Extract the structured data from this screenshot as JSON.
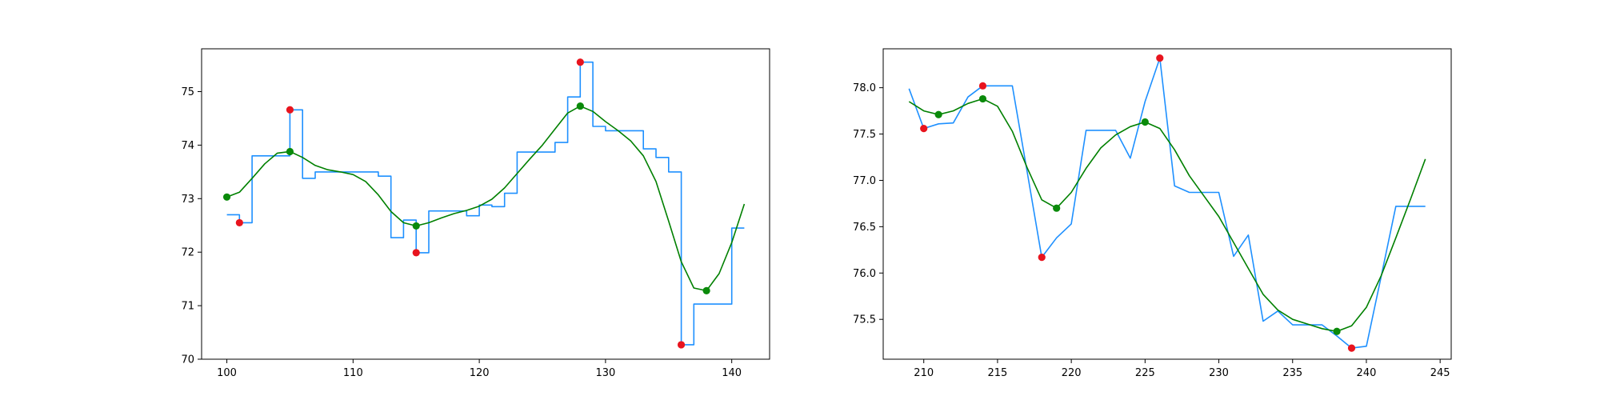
{
  "chart_data": [
    {
      "type": "line",
      "title": "",
      "xlabel": "",
      "ylabel": "",
      "xlim": [
        98,
        143
      ],
      "ylim": [
        70,
        75.8
      ],
      "xticks": [
        100,
        110,
        120,
        130,
        140
      ],
      "yticks": [
        70,
        71,
        72,
        73,
        74,
        75
      ],
      "grid": false,
      "colors": {
        "raw": "#1e90ff",
        "smooth": "#008000",
        "raw_extrema": "#e8141e",
        "smooth_extrema": "#0a8a0a"
      },
      "series": [
        {
          "role": "raw",
          "step": true,
          "x": [
            100,
            101,
            102,
            103,
            104,
            105,
            106,
            107,
            108,
            109,
            110,
            111,
            112,
            113,
            114,
            115,
            116,
            117,
            118,
            119,
            120,
            121,
            122,
            123,
            124,
            125,
            126,
            127,
            128,
            129,
            130,
            131,
            132,
            133,
            134,
            135,
            136,
            137,
            138,
            139,
            140,
            141
          ],
          "y": [
            72.7,
            72.55,
            73.8,
            73.8,
            73.8,
            74.66,
            73.38,
            73.5,
            73.5,
            73.5,
            73.5,
            73.5,
            73.42,
            72.27,
            72.6,
            71.99,
            72.77,
            72.77,
            72.77,
            72.68,
            72.88,
            72.85,
            73.1,
            73.87,
            73.87,
            73.87,
            74.05,
            74.9,
            75.55,
            74.35,
            74.27,
            74.27,
            74.27,
            73.93,
            73.77,
            73.5,
            70.27,
            71.03,
            71.03,
            71.03,
            72.45,
            72.45
          ]
        },
        {
          "role": "smooth",
          "step": false,
          "x": [
            100,
            101,
            102,
            103,
            104,
            105,
            106,
            107,
            108,
            109,
            110,
            111,
            112,
            113,
            114,
            115,
            116,
            117,
            118,
            119,
            120,
            121,
            122,
            123,
            124,
            125,
            126,
            127,
            128,
            129,
            130,
            131,
            132,
            133,
            134,
            135,
            136,
            137,
            138,
            139,
            140,
            141
          ],
          "y": [
            73.03,
            73.12,
            73.38,
            73.65,
            73.85,
            73.88,
            73.77,
            73.62,
            73.54,
            73.5,
            73.45,
            73.32,
            73.07,
            72.76,
            72.55,
            72.49,
            72.55,
            72.64,
            72.72,
            72.78,
            72.86,
            72.99,
            73.2,
            73.47,
            73.74,
            74.0,
            74.3,
            74.6,
            74.73,
            74.63,
            74.44,
            74.27,
            74.08,
            73.8,
            73.32,
            72.58,
            71.82,
            71.33,
            71.28,
            71.6,
            72.18,
            72.9
          ]
        }
      ],
      "raw_extrema": [
        [
          101,
          72.55
        ],
        [
          105,
          74.66
        ],
        [
          115,
          71.99
        ],
        [
          128,
          75.55
        ],
        [
          136,
          70.27
        ]
      ],
      "smooth_extrema": [
        [
          100,
          73.03
        ],
        [
          105,
          73.88
        ],
        [
          115,
          72.49
        ],
        [
          128,
          74.73
        ],
        [
          138,
          71.28
        ]
      ]
    },
    {
      "type": "line",
      "title": "",
      "xlabel": "",
      "ylabel": "",
      "xlim": [
        207.25,
        245.75
      ],
      "ylim": [
        75.07,
        78.42
      ],
      "xticks": [
        210,
        215,
        220,
        225,
        230,
        235,
        240,
        245
      ],
      "yticks": [
        75.5,
        76.0,
        76.5,
        77.0,
        77.5,
        78.0
      ],
      "grid": false,
      "colors": {
        "raw": "#1e90ff",
        "smooth": "#008000",
        "raw_extrema": "#e8141e",
        "smooth_extrema": "#0a8a0a"
      },
      "series": [
        {
          "role": "raw",
          "step": false,
          "x": [
            209,
            210,
            211,
            212,
            213,
            214,
            215,
            216,
            217,
            218,
            219,
            220,
            221,
            222,
            223,
            224,
            225,
            226,
            227,
            228,
            229,
            230,
            231,
            232,
            233,
            234,
            235,
            236,
            237,
            238,
            239,
            240,
            241,
            242,
            243,
            244
          ],
          "y": [
            77.99,
            77.56,
            77.61,
            77.62,
            77.9,
            78.02,
            78.02,
            78.02,
            77.1,
            76.17,
            76.38,
            76.53,
            77.54,
            77.54,
            77.54,
            77.24,
            77.85,
            78.32,
            76.94,
            76.87,
            76.87,
            76.87,
            76.18,
            76.41,
            75.48,
            75.59,
            75.44,
            75.44,
            75.44,
            75.32,
            75.19,
            75.21,
            75.96,
            76.72,
            76.72,
            76.72
          ]
        },
        {
          "role": "smooth",
          "step": false,
          "x": [
            209,
            210,
            211,
            212,
            213,
            214,
            215,
            216,
            217,
            218,
            219,
            220,
            221,
            222,
            223,
            224,
            225,
            226,
            227,
            228,
            229,
            230,
            231,
            232,
            233,
            234,
            235,
            236,
            237,
            238,
            239,
            240,
            241,
            242,
            243,
            244
          ],
          "y": [
            77.85,
            77.75,
            77.71,
            77.75,
            77.83,
            77.88,
            77.8,
            77.53,
            77.14,
            76.79,
            76.7,
            76.87,
            77.13,
            77.35,
            77.49,
            77.58,
            77.63,
            77.56,
            77.33,
            77.05,
            76.83,
            76.61,
            76.33,
            76.05,
            75.77,
            75.6,
            75.5,
            75.45,
            75.4,
            75.37,
            75.43,
            75.63,
            75.97,
            76.38,
            76.8,
            77.23
          ]
        }
      ],
      "raw_extrema": [
        [
          210,
          77.56
        ],
        [
          214,
          78.02
        ],
        [
          218,
          76.17
        ],
        [
          226,
          78.32
        ],
        [
          239,
          75.19
        ]
      ],
      "smooth_extrema": [
        [
          211,
          77.71
        ],
        [
          214,
          77.88
        ],
        [
          219,
          76.7
        ],
        [
          225,
          77.63
        ],
        [
          238,
          75.37
        ]
      ]
    }
  ]
}
